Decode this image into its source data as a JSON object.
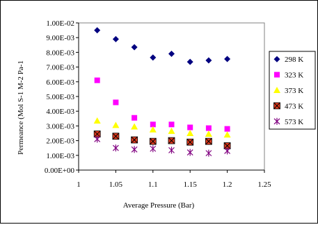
{
  "chart_data": {
    "type": "scatter",
    "title": "",
    "xlabel": "Average Pressure (Bar)",
    "ylabel": "Permeance (Mol S-1 M-2 Pa-1",
    "xlim": [
      1,
      1.25
    ],
    "ylim": [
      0,
      0.01
    ],
    "x_ticks": [
      1,
      1.05,
      1.1,
      1.15,
      1.2,
      1.25
    ],
    "x_tick_labels": [
      "1",
      "1.05",
      "1.1",
      "1.15",
      "1.2",
      "1.25"
    ],
    "y_ticks": [
      0,
      0.001,
      0.002,
      0.003,
      0.004,
      0.005,
      0.006,
      0.007,
      0.008,
      0.009,
      0.01
    ],
    "y_tick_labels": [
      "0.00E+00",
      "1.00E-03",
      "2.00E-03",
      "3.00E-03",
      "4.00E-03",
      "5.00E-03",
      "6.00E-03",
      "7.00E-03",
      "8.00E-03",
      "9.00E-03",
      "1.00E-02"
    ],
    "grid": false,
    "legend_position": "right",
    "x": [
      1.025,
      1.05,
      1.075,
      1.1,
      1.125,
      1.15,
      1.175,
      1.2
    ],
    "series": [
      {
        "name": "298 K",
        "marker": "diamond",
        "color": "#000080",
        "values": [
          0.0095,
          0.0089,
          0.00835,
          0.00765,
          0.0079,
          0.00735,
          0.00745,
          0.00755
        ]
      },
      {
        "name": "323 K",
        "marker": "square",
        "color": "#ff00ff",
        "values": [
          0.0061,
          0.0046,
          0.00355,
          0.0031,
          0.0031,
          0.0029,
          0.00285,
          0.0028
        ]
      },
      {
        "name": "373 K",
        "marker": "triangle",
        "color": "#ffff00",
        "values": [
          0.00335,
          0.00305,
          0.00295,
          0.00275,
          0.00265,
          0.0025,
          0.00245,
          0.0024
        ]
      },
      {
        "name": "473 K",
        "marker": "x-square",
        "color": "#e03a1e",
        "values": [
          0.00245,
          0.0023,
          0.00205,
          0.00195,
          0.002,
          0.0019,
          0.00195,
          0.00165
        ]
      },
      {
        "name": "573 K",
        "marker": "asterisk",
        "color": "#800080",
        "values": [
          0.0021,
          0.0015,
          0.0014,
          0.00145,
          0.00135,
          0.0012,
          0.00115,
          0.0013
        ]
      }
    ]
  }
}
